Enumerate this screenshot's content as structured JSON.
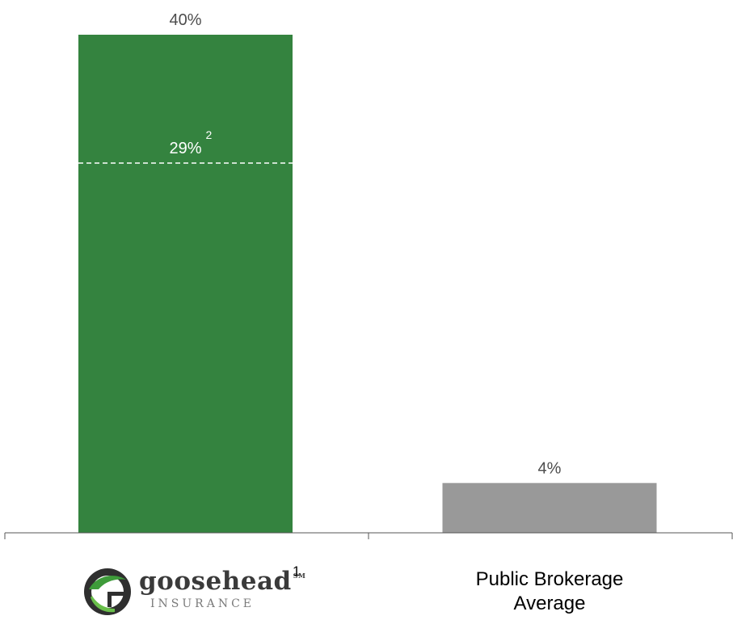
{
  "chart_data": {
    "type": "bar",
    "categories": [
      "goosehead INSURANCE",
      "Public Brokerage Average"
    ],
    "values": [
      40,
      4
    ],
    "value_labels": [
      "40%",
      "4%"
    ],
    "reference_line": {
      "category": "goosehead INSURANCE",
      "value": 29,
      "label": "29%",
      "footnote": "2"
    },
    "category_footnotes": [
      "1",
      ""
    ],
    "colors": [
      "#34833f",
      "#999999"
    ],
    "ylim": [
      0,
      40
    ],
    "grid": false
  },
  "logo": {
    "word": "goosehead",
    "mark": "SM",
    "sub": "INSURANCE",
    "footnote": "1"
  },
  "category_labels": {
    "public_line1": "Public Brokerage",
    "public_line2": "Average"
  }
}
